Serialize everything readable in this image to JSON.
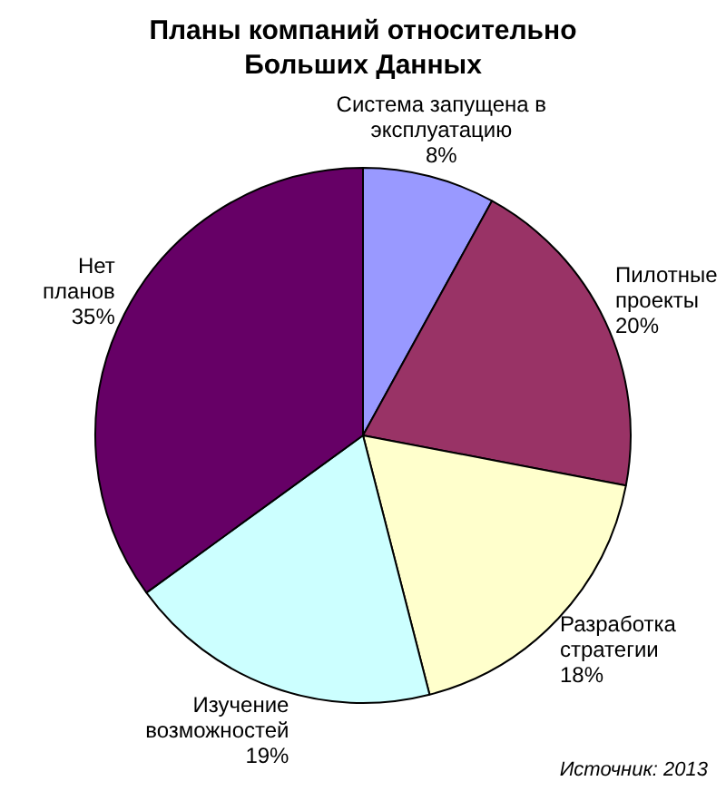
{
  "chart_data": {
    "type": "pie",
    "title": "Планы компаний относительно Больших Данных",
    "categories": [
      "Система запущена в эксплуатацию",
      "Пилотные проекты",
      "Разработка стратегии",
      "Изучение возможностей",
      "Нет планов"
    ],
    "values": [
      8,
      20,
      18,
      19,
      35
    ],
    "value_labels": [
      "8%",
      "20%",
      "18%",
      "19%",
      "35%"
    ],
    "colors": [
      "#9999ff",
      "#993366",
      "#ffffcc",
      "#ccffff",
      "#660066"
    ],
    "legend": false,
    "annotations": [
      "Источник: 2013"
    ]
  }
}
